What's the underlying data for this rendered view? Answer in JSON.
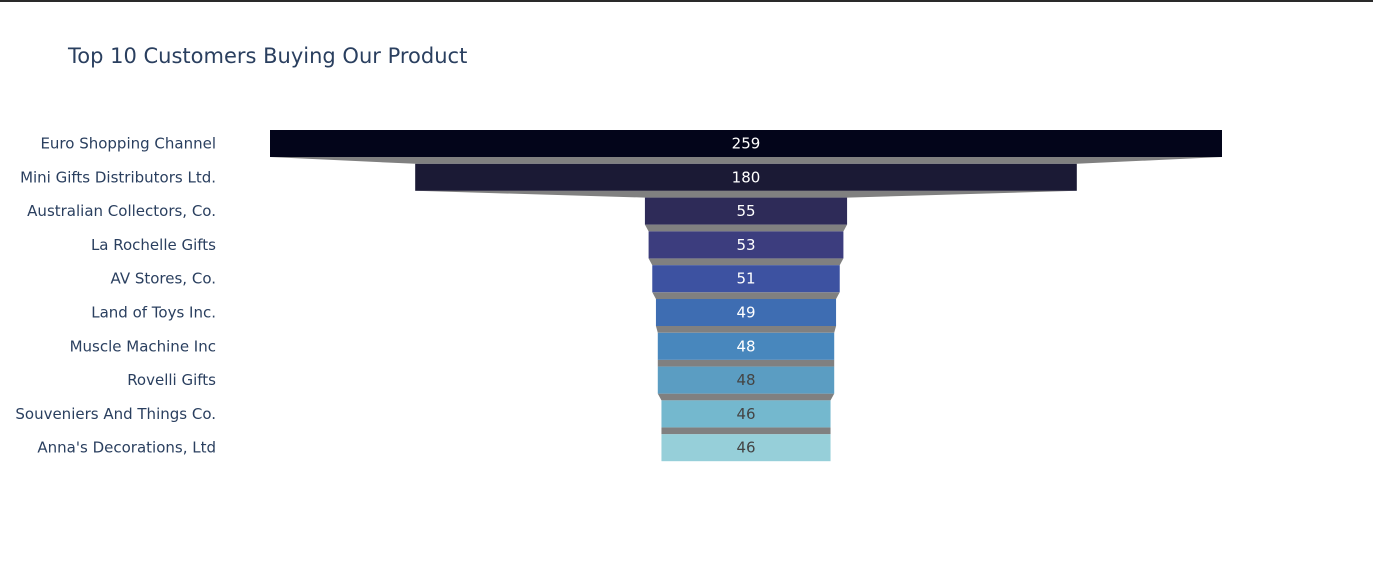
{
  "chart_data": {
    "type": "funnel",
    "title": "Top 10 Customers Buying Our Product",
    "categories": [
      "Euro Shopping Channel",
      "Mini Gifts Distributors Ltd.",
      "Australian Collectors, Co.",
      "La Rochelle Gifts",
      "AV Stores, Co.",
      "Land of Toys Inc.",
      "Muscle Machine Inc",
      "Rovelli Gifts",
      "Souveniers And Things Co.",
      "Anna's Decorations, Ltd"
    ],
    "values": [
      259,
      180,
      55,
      53,
      51,
      49,
      48,
      48,
      46,
      46
    ],
    "colors": [
      "#03051a",
      "#1b1a35",
      "#2e2b58",
      "#3c3d7e",
      "#3d52a1",
      "#3e6db2",
      "#4887bd",
      "#5b9dc2",
      "#74b8ce",
      "#96cfd9"
    ],
    "label_colors": [
      "#ffffff",
      "#ffffff",
      "#ffffff",
      "#ffffff",
      "#ffffff",
      "#ffffff",
      "#ffffff",
      "#444444",
      "#444444",
      "#444444"
    ],
    "connector_color": "#808080"
  }
}
